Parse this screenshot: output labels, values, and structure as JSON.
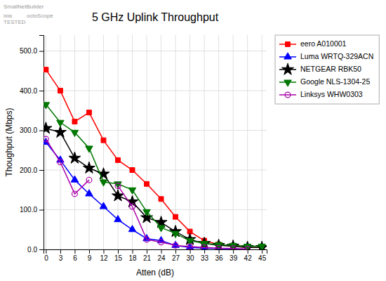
{
  "chart_data": {
    "type": "line",
    "title": "5 GHz Uplink Throughput",
    "xlabel": "Atten (dB)",
    "ylabel": "Thoughput (Mbps)",
    "annotations": [
      "SmallNetBuilder",
      "ixia\nTESTED",
      "octoScope"
    ],
    "x": [
      0,
      3,
      6,
      9,
      12,
      15,
      18,
      21,
      24,
      27,
      30,
      33,
      36,
      39,
      42,
      45
    ],
    "series": [
      {
        "name": "eero A010001",
        "color": "#ff0000",
        "marker": "square",
        "values": [
          453,
          400,
          322,
          345,
          275,
          225,
          200,
          165,
          127,
          82,
          45,
          22,
          12,
          8,
          5,
          5
        ]
      },
      {
        "name": "Luma WRTQ-329ACN",
        "color": "#0000ff",
        "marker": "triangle-up",
        "values": [
          270,
          225,
          175,
          140,
          108,
          75,
          50,
          27,
          22,
          10,
          5,
          3,
          2,
          1,
          1,
          null
        ]
      },
      {
        "name": "NETGEAR RBK50",
        "color": "#000000",
        "marker": "star",
        "values": [
          305,
          295,
          230,
          205,
          190,
          135,
          120,
          80,
          68,
          45,
          25,
          15,
          10,
          8,
          5,
          5
        ]
      },
      {
        "name": "Google NLS-1304-25",
        "color": "#007700",
        "marker": "triangle-down",
        "values": [
          365,
          320,
          295,
          255,
          170,
          165,
          150,
          95,
          55,
          40,
          22,
          15,
          12,
          10,
          8,
          8
        ]
      },
      {
        "name": "Linksys WHW0303",
        "color": "#aa00aa",
        "marker": "circle-open",
        "values": [
          278,
          220,
          140,
          175,
          null,
          160,
          108,
          25,
          18,
          10,
          7,
          5,
          3,
          2,
          1,
          null
        ]
      }
    ],
    "xlim": [
      -0.5,
      46
    ],
    "xticks": [
      0,
      3,
      6,
      9,
      12,
      15,
      18,
      21,
      24,
      27,
      30,
      33,
      36,
      39,
      42,
      45
    ],
    "ylim": [
      0,
      540
    ],
    "yticks": [
      {
        "value": 0,
        "label": "0.0"
      },
      {
        "value": 100,
        "label": "100.0"
      },
      {
        "value": 200,
        "label": "200.0"
      },
      {
        "value": 300,
        "label": "300.0"
      },
      {
        "value": 400,
        "label": "400.0"
      },
      {
        "value": 500,
        "label": "500.0"
      }
    ],
    "grid": true,
    "legend": "right"
  }
}
